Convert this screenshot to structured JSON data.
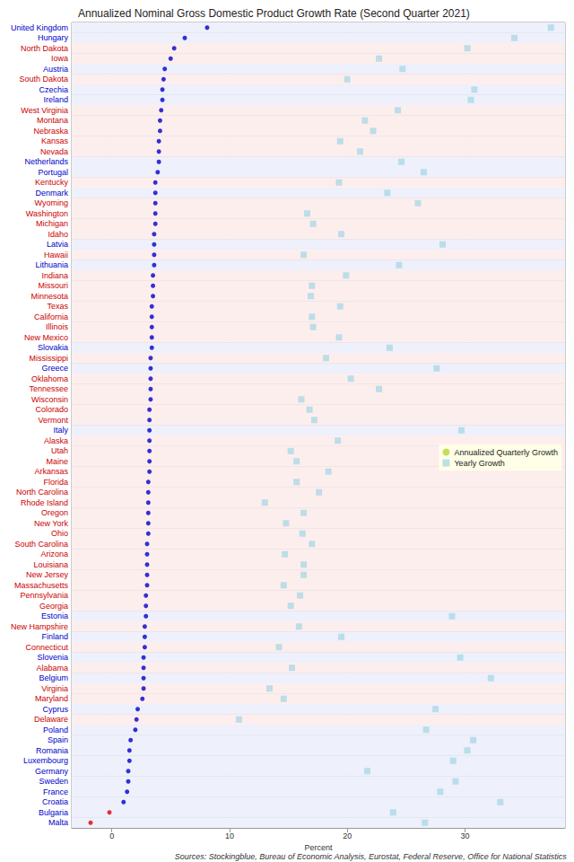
{
  "chart_data": {
    "type": "scatter",
    "title": "Annualized Nominal Gross Domestic Product Growth Rate (Second Quarter 2021)",
    "x_label": "Percent",
    "annotations": [
      "Sources: Stockingblue, Bureau of Economic Analysis, Eurostat, Federal Reserve, Office for National Statistics"
    ],
    "categories": [
      "United Kingdom",
      "Hungary",
      "North Dakota",
      "Iowa",
      "Austria",
      "South Dakota",
      "Czechia",
      "Ireland",
      "West Virginia",
      "Montana",
      "Nebraska",
      "Kansas",
      "Nevada",
      "Netherlands",
      "Portugal",
      "Kentucky",
      "Denmark",
      "Wyoming",
      "Washington",
      "Michigan",
      "Idaho",
      "Latvia",
      "Hawaii",
      "Lithuania",
      "Indiana",
      "Missouri",
      "Minnesota",
      "Texas",
      "California",
      "Illinois",
      "New Mexico",
      "Slovakia",
      "Mississippi",
      "Greece",
      "Oklahoma",
      "Tennessee",
      "Wisconsin",
      "Colorado",
      "Vermont",
      "Italy",
      "Alaska",
      "Utah",
      "Maine",
      "Arkansas",
      "Florida",
      "North Carolina",
      "Rhode Island",
      "Oregon",
      "New York",
      "Ohio",
      "South Carolina",
      "Arizona",
      "Louisiana",
      "New Jersey",
      "Massachusetts",
      "Pennsylvania",
      "Georgia",
      "Estonia",
      "New Hampshire",
      "Finland",
      "Connecticut",
      "Slovenia",
      "Alabama",
      "Belgium",
      "Virginia",
      "Maryland",
      "Cyprus",
      "Delaware",
      "Poland",
      "Spain",
      "Romania",
      "Luxembourg",
      "Germany",
      "Sweden",
      "France",
      "Croatia",
      "Bulgaria",
      "Malta"
    ],
    "category_colors": [
      "#0000cc",
      "#0000cc",
      "#cc0000",
      "#cc0000",
      "#0000cc",
      "#cc0000",
      "#0000cc",
      "#0000cc",
      "#cc0000",
      "#cc0000",
      "#cc0000",
      "#cc0000",
      "#cc0000",
      "#0000cc",
      "#0000cc",
      "#cc0000",
      "#0000cc",
      "#cc0000",
      "#cc0000",
      "#cc0000",
      "#cc0000",
      "#0000cc",
      "#cc0000",
      "#0000cc",
      "#cc0000",
      "#cc0000",
      "#cc0000",
      "#cc0000",
      "#cc0000",
      "#cc0000",
      "#cc0000",
      "#0000cc",
      "#cc0000",
      "#0000cc",
      "#cc0000",
      "#cc0000",
      "#cc0000",
      "#cc0000",
      "#cc0000",
      "#0000cc",
      "#cc0000",
      "#cc0000",
      "#cc0000",
      "#cc0000",
      "#cc0000",
      "#cc0000",
      "#cc0000",
      "#cc0000",
      "#cc0000",
      "#cc0000",
      "#cc0000",
      "#cc0000",
      "#cc0000",
      "#cc0000",
      "#cc0000",
      "#cc0000",
      "#cc0000",
      "#0000cc",
      "#cc0000",
      "#0000cc",
      "#cc0000",
      "#0000cc",
      "#cc0000",
      "#0000cc",
      "#cc0000",
      "#cc0000",
      "#0000cc",
      "#cc0000",
      "#0000cc",
      "#0000cc",
      "#0000cc",
      "#0000cc",
      "#0000cc",
      "#0000cc",
      "#0000cc",
      "#0000cc",
      "#0000cc",
      "#0000cc"
    ],
    "series": [
      {
        "name": "Annualized Quarterly Growth",
        "marker": "circle",
        "values": [
          8.1,
          6.2,
          5.3,
          5.0,
          4.5,
          4.4,
          4.3,
          4.3,
          4.2,
          4.1,
          4.1,
          4.0,
          4.0,
          4.0,
          3.9,
          3.7,
          3.7,
          3.7,
          3.7,
          3.7,
          3.6,
          3.6,
          3.6,
          3.6,
          3.5,
          3.5,
          3.5,
          3.4,
          3.4,
          3.4,
          3.4,
          3.4,
          3.3,
          3.3,
          3.3,
          3.3,
          3.3,
          3.2,
          3.2,
          3.2,
          3.2,
          3.2,
          3.2,
          3.2,
          3.1,
          3.1,
          3.1,
          3.1,
          3.1,
          3.1,
          3.0,
          3.0,
          3.0,
          3.0,
          3.0,
          2.9,
          2.9,
          2.9,
          2.8,
          2.8,
          2.8,
          2.7,
          2.7,
          2.7,
          2.7,
          2.6,
          2.2,
          2.1,
          2.0,
          1.6,
          1.5,
          1.5,
          1.4,
          1.4,
          1.3,
          1.0,
          -0.2,
          -1.8
        ],
        "colors": [
          "#0000cc",
          "#0000cc",
          "#0000cc",
          "#0000cc",
          "#0000cc",
          "#0000cc",
          "#0000cc",
          "#0000cc",
          "#0000cc",
          "#0000cc",
          "#0000cc",
          "#0000cc",
          "#0000cc",
          "#0000cc",
          "#0000cc",
          "#0000cc",
          "#0000cc",
          "#0000cc",
          "#0000cc",
          "#0000cc",
          "#0000cc",
          "#0000cc",
          "#0000cc",
          "#0000cc",
          "#0000cc",
          "#0000cc",
          "#0000cc",
          "#0000cc",
          "#0000cc",
          "#0000cc",
          "#0000cc",
          "#0000cc",
          "#0000cc",
          "#0000cc",
          "#0000cc",
          "#0000cc",
          "#0000cc",
          "#0000cc",
          "#0000cc",
          "#0000cc",
          "#0000cc",
          "#0000cc",
          "#0000cc",
          "#0000cc",
          "#0000cc",
          "#0000cc",
          "#0000cc",
          "#0000cc",
          "#0000cc",
          "#0000cc",
          "#0000cc",
          "#0000cc",
          "#0000cc",
          "#0000cc",
          "#0000cc",
          "#0000cc",
          "#0000cc",
          "#0000cc",
          "#0000cc",
          "#0000cc",
          "#0000cc",
          "#0000cc",
          "#0000cc",
          "#0000cc",
          "#0000cc",
          "#0000cc",
          "#0000cc",
          "#0000cc",
          "#0000cc",
          "#0000cc",
          "#0000cc",
          "#0000cc",
          "#0000cc",
          "#0000cc",
          "#0000cc",
          "#0000cc",
          "#dd0000",
          "#dd0000"
        ]
      },
      {
        "name": "Yearly Growth",
        "marker": "square",
        "color": "#add8e6",
        "values": [
          37.3,
          34.2,
          30.2,
          22.7,
          24.7,
          20.0,
          30.8,
          30.5,
          24.3,
          21.5,
          22.2,
          19.4,
          21.1,
          24.6,
          26.5,
          19.3,
          23.4,
          26.0,
          16.6,
          17.1,
          19.5,
          28.1,
          16.3,
          24.4,
          19.9,
          17.0,
          16.9,
          19.4,
          17.0,
          17.1,
          19.3,
          23.6,
          18.2,
          27.6,
          20.3,
          22.7,
          16.1,
          16.8,
          17.2,
          29.7,
          19.2,
          15.2,
          15.7,
          18.4,
          15.7,
          17.6,
          13.0,
          16.3,
          14.8,
          16.2,
          17.0,
          14.7,
          16.3,
          16.3,
          14.6,
          16.0,
          15.2,
          28.9,
          15.9,
          19.5,
          14.2,
          29.6,
          15.3,
          32.2,
          13.4,
          14.6,
          27.5,
          10.8,
          26.7,
          30.7,
          30.2,
          29.0,
          21.7,
          29.2,
          27.9,
          33.0,
          23.9,
          26.6
        ]
      }
    ],
    "xlim": [
      -3.4,
      38.5
    ],
    "xticks": [
      0,
      10,
      20,
      30
    ],
    "grid": true,
    "legend": "right"
  }
}
